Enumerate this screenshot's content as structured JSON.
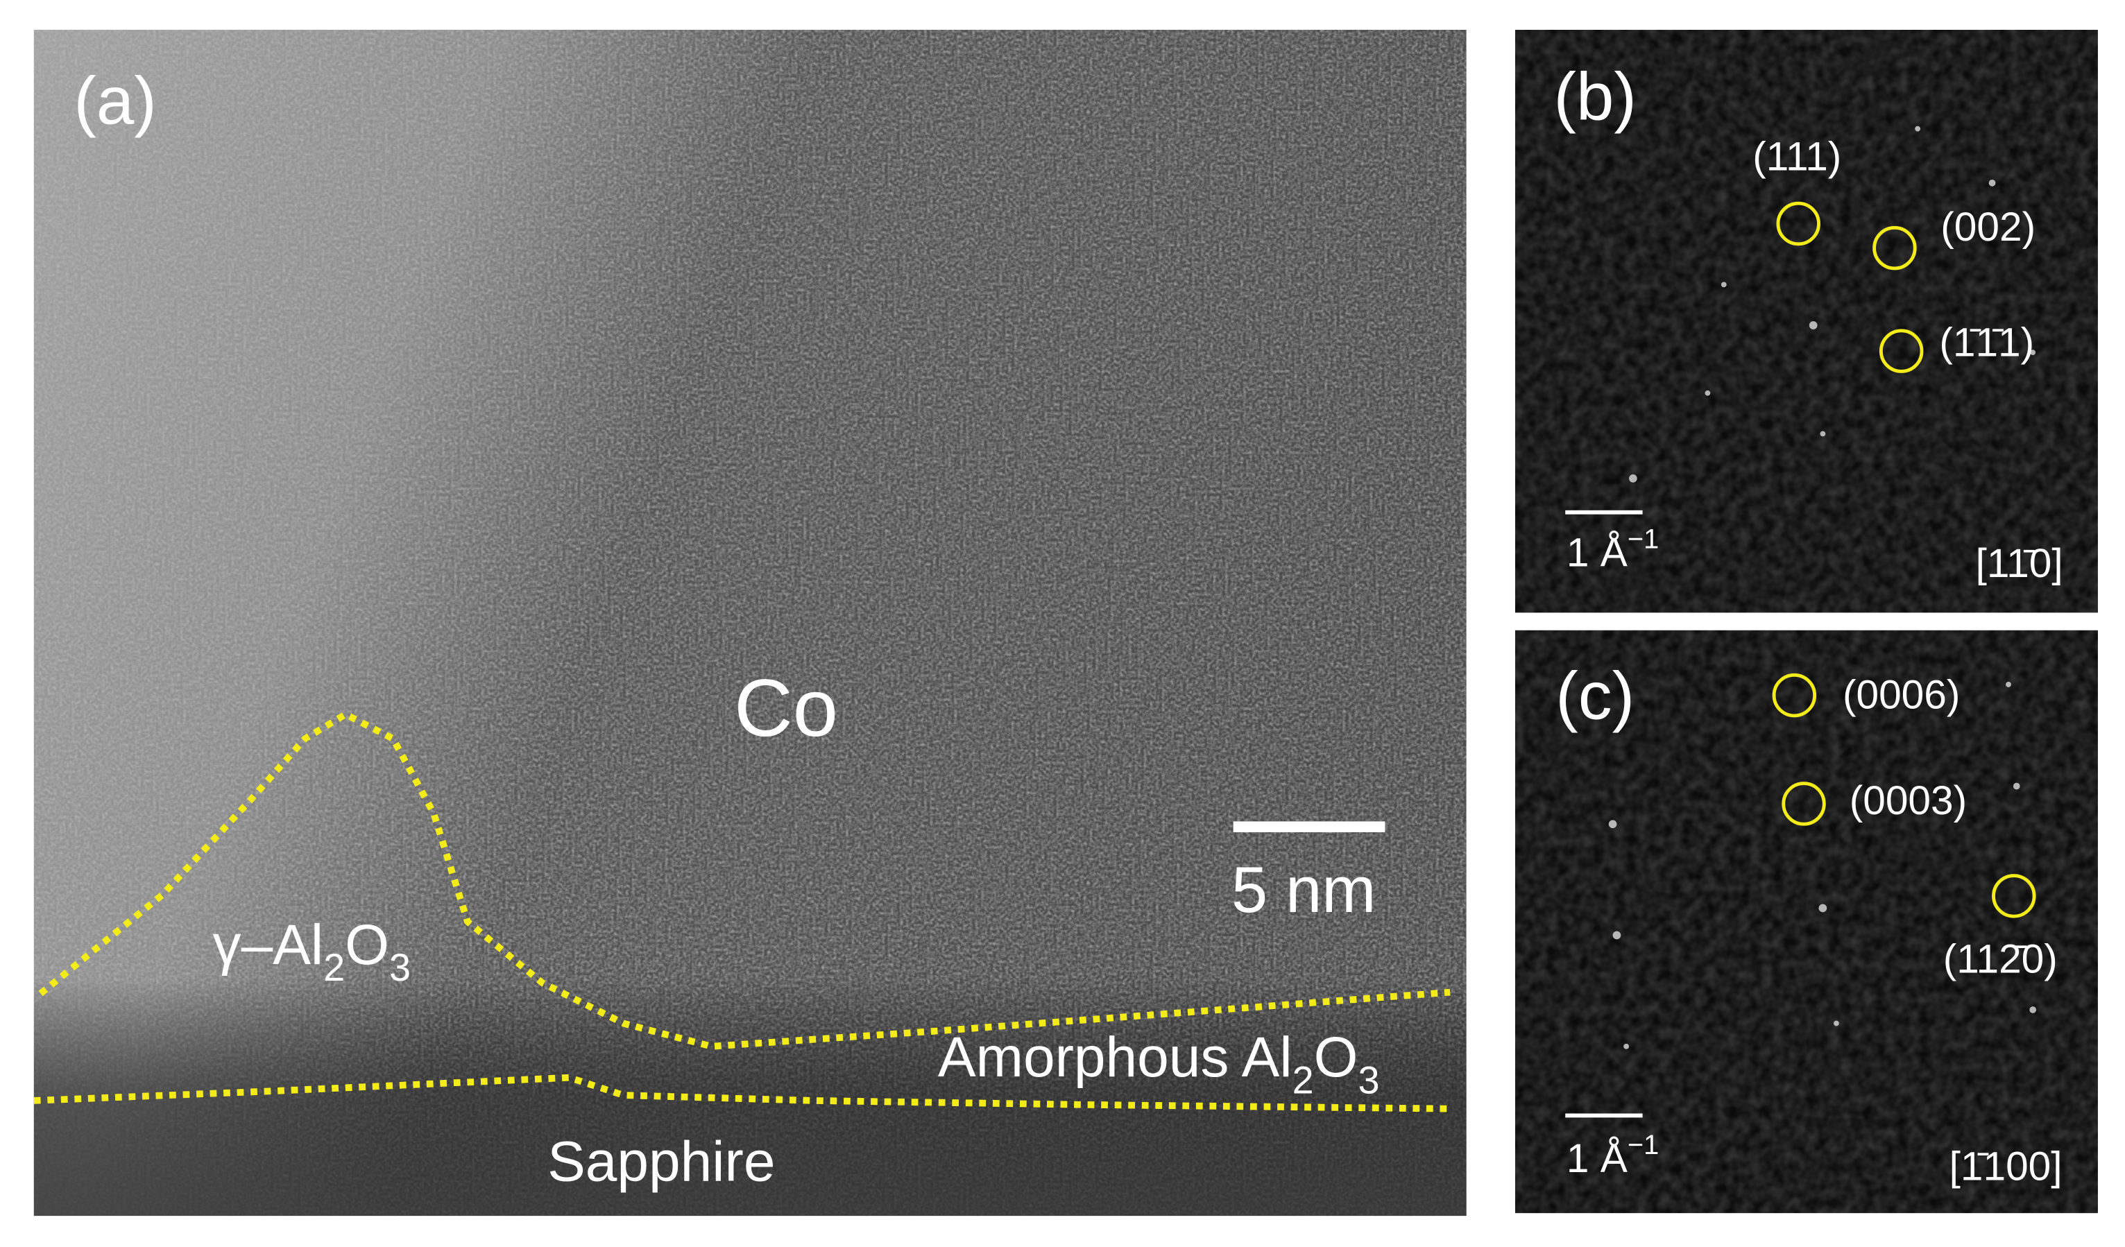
{
  "panel_a": {
    "texts": [
      {
        "parts": [
          {
            "text": "(a)"
          }
        ]
      },
      {
        "parts": [
          {
            "text": "Co"
          }
        ]
      },
      {
        "parts": [
          {
            "text": "5 nm"
          }
        ]
      },
      {
        "parts": [
          {
            "text": "γ–Al"
          },
          {
            "text": "2",
            "sub": true
          },
          {
            "text": "O"
          },
          {
            "text": "3",
            "sub": true
          }
        ]
      },
      {
        "parts": [
          {
            "text": "Amorphous Al"
          },
          {
            "text": "2",
            "sub": true
          },
          {
            "text": "O"
          },
          {
            "text": "3",
            "sub": true
          }
        ]
      },
      {
        "parts": [
          {
            "text": "Sapphire"
          }
        ]
      }
    ]
  },
  "panel_b": {
    "texts": [
      {
        "parts": [
          {
            "text": "(b)"
          }
        ]
      },
      {
        "parts": [
          {
            "text": "(111)"
          }
        ]
      },
      {
        "parts": [
          {
            "text": "(002)"
          }
        ]
      },
      {
        "parts": [
          {
            "text": "(1̄1̄1)"
          }
        ]
      },
      {
        "parts": [
          {
            "text": "1 Å"
          },
          {
            "text": "−1",
            "sup": true
          }
        ]
      },
      {
        "parts": [
          {
            "text": "[11̄0]"
          }
        ]
      }
    ]
  },
  "panel_c": {
    "texts": [
      {
        "parts": [
          {
            "text": "(c)"
          }
        ]
      },
      {
        "parts": [
          {
            "text": "(0006)"
          }
        ]
      },
      {
        "parts": [
          {
            "text": "(0003)"
          }
        ]
      },
      {
        "parts": [
          {
            "text": "(112̄0)"
          }
        ]
      },
      {
        "parts": [
          {
            "text": "1 Å"
          },
          {
            "text": "−1",
            "sup": true
          }
        ]
      },
      {
        "parts": [
          {
            "text": "[1̄100]"
          }
        ]
      }
    ]
  }
}
